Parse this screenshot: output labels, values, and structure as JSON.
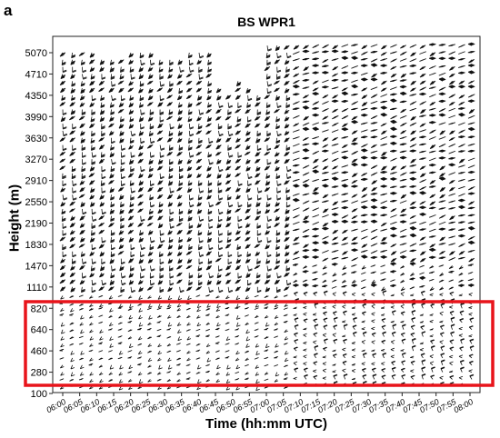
{
  "panel_label": "a",
  "chart_data": {
    "type": "wind-barb profile",
    "title": "BS WPR1",
    "xlabel": "Time (hh:mm UTC)",
    "ylabel": "Height (m)",
    "x_ticks": [
      "06:00",
      "06:05",
      "06:10",
      "06:15",
      "06:20",
      "06:25",
      "06:30",
      "06:35",
      "06:40",
      "06:45",
      "06:50",
      "06:55",
      "07:00",
      "07:05",
      "07:10",
      "07:15",
      "07:20",
      "07:25",
      "07:30",
      "07:35",
      "07:40",
      "07:45",
      "07:50",
      "07:55",
      "08:00"
    ],
    "y_ticks": [
      100,
      280,
      460,
      640,
      820,
      1110,
      1470,
      1830,
      2190,
      2550,
      2910,
      3270,
      3630,
      3990,
      4350,
      4710,
      5070
    ],
    "y_levels": [
      100,
      160,
      220,
      280,
      340,
      400,
      460,
      520,
      580,
      640,
      700,
      760,
      820,
      880,
      990,
      1110,
      1230,
      1350,
      1470,
      1590,
      1710,
      1830,
      1950,
      2070,
      2190,
      2310,
      2430,
      2550,
      2670,
      2790,
      2910,
      3030,
      3150,
      3270,
      3390,
      3510,
      3630,
      3750,
      3870,
      3990,
      4110,
      4230,
      4350,
      4470,
      4590,
      4710,
      4830,
      4950,
      5070,
      5190
    ],
    "series": [
      {
        "start": "06:00",
        "end": "08:00",
        "step_minutes": 2.5,
        "max_height": 5190
      }
    ],
    "highlight": {
      "y_range": [
        100,
        960
      ],
      "color": "#e8141b"
    },
    "barb_color": "#111111",
    "grid": false
  }
}
